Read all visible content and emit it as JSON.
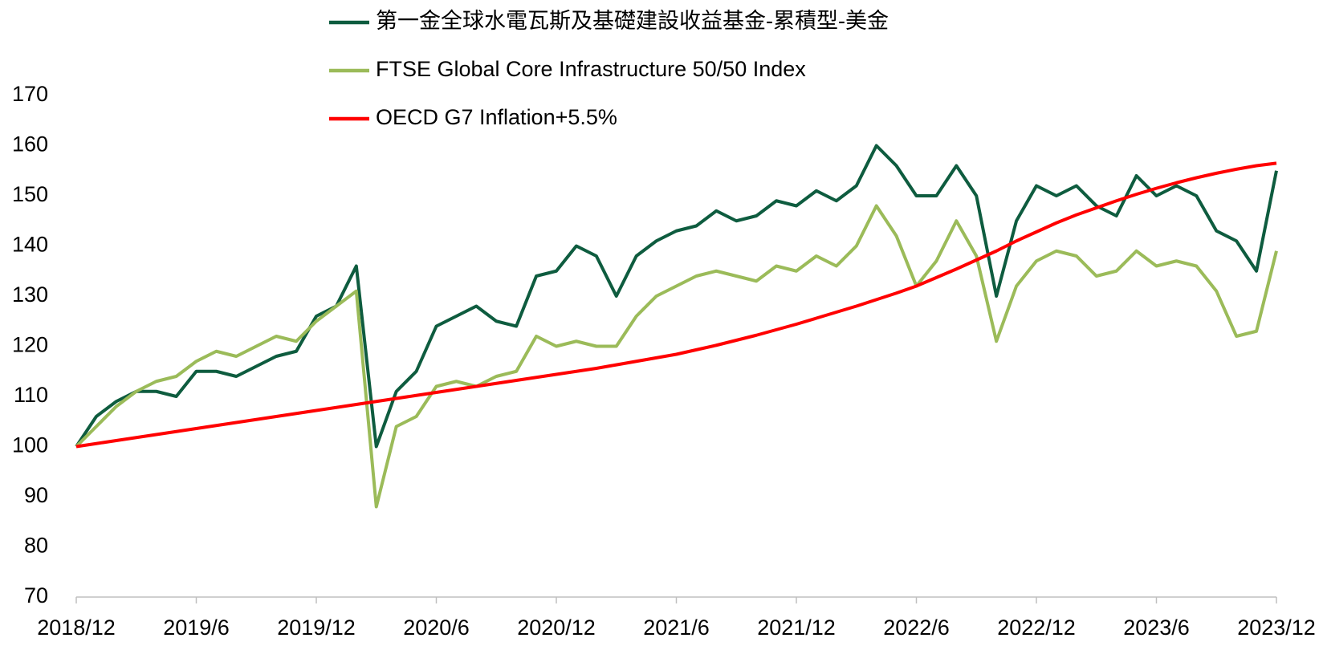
{
  "chart_data": {
    "type": "line",
    "categories": [
      "2018/12",
      null,
      null,
      null,
      null,
      null,
      "2019/6",
      null,
      null,
      null,
      null,
      null,
      "2019/12",
      null,
      null,
      null,
      null,
      null,
      "2020/6",
      null,
      null,
      null,
      null,
      null,
      "2020/12",
      null,
      null,
      null,
      null,
      null,
      "2021/6",
      null,
      null,
      null,
      null,
      null,
      "2021/12",
      null,
      null,
      null,
      null,
      null,
      "2022/6",
      null,
      null,
      null,
      null,
      null,
      "2022/12",
      null,
      null,
      null,
      null,
      null,
      "2023/6",
      null,
      null,
      null,
      null,
      null,
      "2023/12"
    ],
    "series": [
      {
        "name": "第一金全球水電瓦斯及基礎建設收益基金-累積型-美金",
        "color": "#0e5c3f",
        "values": [
          100,
          106,
          109,
          111,
          111,
          110,
          115,
          115,
          114,
          116,
          118,
          119,
          126,
          128,
          136,
          100,
          111,
          115,
          124,
          126,
          128,
          125,
          124,
          134,
          135,
          140,
          138,
          130,
          138,
          141,
          143,
          144,
          147,
          145,
          146,
          149,
          148,
          151,
          149,
          152,
          160,
          156,
          150,
          150,
          156,
          150,
          130,
          145,
          152,
          150,
          152,
          148,
          146,
          154,
          150,
          152,
          150,
          143,
          141,
          135,
          155
        ]
      },
      {
        "name": "FTSE Global Core Infrastructure 50/50 Index",
        "color": "#9bbb59",
        "values": [
          100,
          104,
          108,
          111,
          113,
          114,
          117,
          119,
          118,
          120,
          122,
          121,
          125,
          128,
          131,
          88,
          104,
          106,
          112,
          113,
          112,
          114,
          115,
          122,
          120,
          121,
          120,
          120,
          126,
          130,
          132,
          134,
          135,
          134,
          133,
          136,
          135,
          138,
          136,
          140,
          148,
          142,
          132,
          137,
          145,
          138,
          121,
          132,
          137,
          139,
          138,
          134,
          135,
          139,
          136,
          137,
          136,
          131,
          122,
          123,
          139
        ]
      },
      {
        "name": "OECD G7 Inflation+5.5%",
        "color": "#ff0000",
        "values": [
          100,
          100.6,
          101.2,
          101.8,
          102.4,
          103,
          103.6,
          104.2,
          104.8,
          105.4,
          106,
          106.6,
          107.2,
          107.8,
          108.4,
          109,
          109.6,
          110.2,
          110.8,
          111.4,
          112,
          112.6,
          113.2,
          113.8,
          114.4,
          115,
          115.6,
          116.3,
          117,
          117.7,
          118.4,
          119.3,
          120.2,
          121.2,
          122.2,
          123.3,
          124.4,
          125.6,
          126.8,
          128,
          129.3,
          130.6,
          132,
          133.7,
          135.4,
          137.2,
          139,
          141,
          142.8,
          144.6,
          146.2,
          147.6,
          149,
          150.3,
          151.5,
          152.6,
          153.6,
          154.5,
          155.3,
          156,
          156.5
        ]
      }
    ],
    "ylim": [
      70,
      170
    ],
    "yticks": [
      70,
      80,
      90,
      100,
      110,
      120,
      130,
      140,
      150,
      160,
      170
    ],
    "grid": false,
    "legend": "top"
  }
}
